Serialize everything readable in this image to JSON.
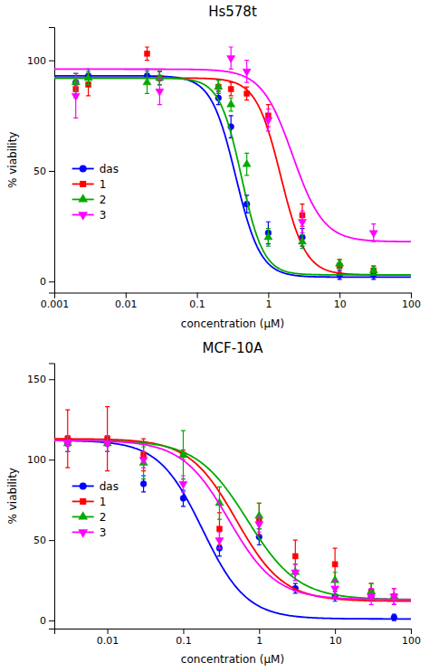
{
  "chart_data": [
    {
      "type": "scatter",
      "title": "Hs578t",
      "xlabel": "concentration (μM)",
      "ylabel": "% viability",
      "log": "x",
      "grid": false,
      "legend": "left",
      "xlim": [
        0.001,
        100
      ],
      "xticks": [
        0.001,
        0.01,
        0.1,
        1,
        10,
        100
      ],
      "ylim": [
        -5,
        115
      ],
      "yticks": [
        0,
        50,
        100
      ],
      "series": [
        {
          "name": "das",
          "color": "#0000FF",
          "marker": "circle",
          "x": [
            0.002,
            0.003,
            0.02,
            0.03,
            0.2,
            0.3,
            0.5,
            1.0,
            3.0,
            10.0,
            30.0
          ],
          "values": [
            90,
            93,
            93,
            92,
            83,
            70,
            35,
            22,
            20,
            3,
            3
          ],
          "errors": [
            4,
            3,
            3,
            3,
            3,
            5,
            4,
            5,
            4,
            2,
            2
          ],
          "fit": {
            "ec50": 0.35,
            "hill": 2.5,
            "top": 93,
            "bottom": 2
          }
        },
        {
          "name": "1",
          "color": "#FF0000",
          "marker": "square",
          "x": [
            0.002,
            0.003,
            0.02,
            0.03,
            0.2,
            0.3,
            0.5,
            1.0,
            3.0,
            10.0,
            30.0
          ],
          "values": [
            87,
            89,
            103,
            92,
            88,
            87,
            85,
            75,
            30,
            7,
            5
          ],
          "errors": [
            4,
            5,
            3,
            3,
            3,
            3,
            3,
            5,
            5,
            3,
            2
          ],
          "fit": {
            "ec50": 1.5,
            "hill": 2.5,
            "top": 92,
            "bottom": 3
          }
        },
        {
          "name": "2",
          "color": "#00AA00",
          "marker": "triangle-up",
          "x": [
            0.002,
            0.003,
            0.02,
            0.03,
            0.2,
            0.3,
            0.5,
            1.0,
            3.0,
            10.0,
            30.0
          ],
          "values": [
            90,
            92,
            90,
            92,
            88,
            80,
            53,
            20,
            18,
            8,
            5
          ],
          "errors": [
            4,
            3,
            5,
            3,
            3,
            3,
            5,
            4,
            3,
            2,
            2
          ],
          "fit": {
            "ec50": 0.42,
            "hill": 2.8,
            "top": 92,
            "bottom": 3
          }
        },
        {
          "name": "3",
          "color": "#FF00FF",
          "marker": "triangle-down",
          "x": [
            0.002,
            0.03,
            0.3,
            0.5,
            1.0,
            3.0,
            30.0
          ],
          "values": [
            84,
            86,
            101,
            95,
            73,
            27,
            22
          ],
          "errors": [
            10,
            6,
            5,
            5,
            5,
            5,
            4
          ],
          "fit": {
            "ec50": 2.2,
            "hill": 2.0,
            "top": 96,
            "bottom": 18
          }
        }
      ]
    },
    {
      "type": "scatter",
      "title": "MCF-10A",
      "xlabel": "concentration (μM)",
      "ylabel": "% viability",
      "log": "x",
      "grid": false,
      "legend": "left",
      "xlim": [
        0.002,
        100
      ],
      "xticks": [
        0.01,
        0.1,
        1,
        10,
        100
      ],
      "ylim": [
        -5,
        160
      ],
      "yticks": [
        0,
        50,
        100,
        150
      ],
      "series": [
        {
          "name": "das",
          "color": "#0000FF",
          "marker": "circle",
          "x": [
            0.003,
            0.01,
            0.03,
            0.1,
            0.3,
            1.0,
            3.0,
            10.0,
            30.0,
            60.0
          ],
          "values": [
            110,
            110,
            85,
            76,
            45,
            52,
            20,
            15,
            15,
            2
          ],
          "errors": [
            5,
            5,
            5,
            5,
            5,
            5,
            3,
            3,
            3,
            2
          ],
          "fit": {
            "ec50": 0.18,
            "hill": 1.5,
            "top": 112,
            "bottom": 1
          }
        },
        {
          "name": "1",
          "color": "#FF0000",
          "marker": "square",
          "x": [
            0.003,
            0.01,
            0.03,
            0.1,
            0.3,
            1.0,
            3.0,
            10.0,
            30.0,
            60.0
          ],
          "values": [
            113,
            113,
            103,
            103,
            57,
            63,
            40,
            35,
            18,
            15
          ],
          "errors": [
            18,
            20,
            10,
            3,
            10,
            10,
            10,
            10,
            5,
            5
          ],
          "fit": {
            "ec50": 0.5,
            "hill": 1.4,
            "top": 113,
            "bottom": 12
          }
        },
        {
          "name": "2",
          "color": "#00AA00",
          "marker": "triangle-up",
          "x": [
            0.003,
            0.01,
            0.03,
            0.1,
            0.3,
            1.0,
            3.0,
            10.0,
            30.0,
            60.0
          ],
          "values": [
            110,
            110,
            98,
            103,
            73,
            65,
            30,
            25,
            18,
            15
          ],
          "errors": [
            5,
            5,
            10,
            15,
            10,
            8,
            5,
            5,
            5,
            5
          ],
          "fit": {
            "ec50": 0.7,
            "hill": 1.3,
            "top": 112,
            "bottom": 13
          }
        },
        {
          "name": "3",
          "color": "#FF00FF",
          "marker": "triangle-down",
          "x": [
            0.003,
            0.01,
            0.03,
            0.1,
            0.3,
            1.0,
            3.0,
            10.0,
            30.0,
            60.0
          ],
          "values": [
            110,
            110,
            100,
            85,
            50,
            60,
            30,
            20,
            15,
            15
          ],
          "errors": [
            5,
            5,
            5,
            5,
            5,
            5,
            5,
            5,
            5,
            5
          ],
          "fit": {
            "ec50": 0.4,
            "hill": 1.4,
            "top": 112,
            "bottom": 13
          }
        }
      ]
    }
  ]
}
